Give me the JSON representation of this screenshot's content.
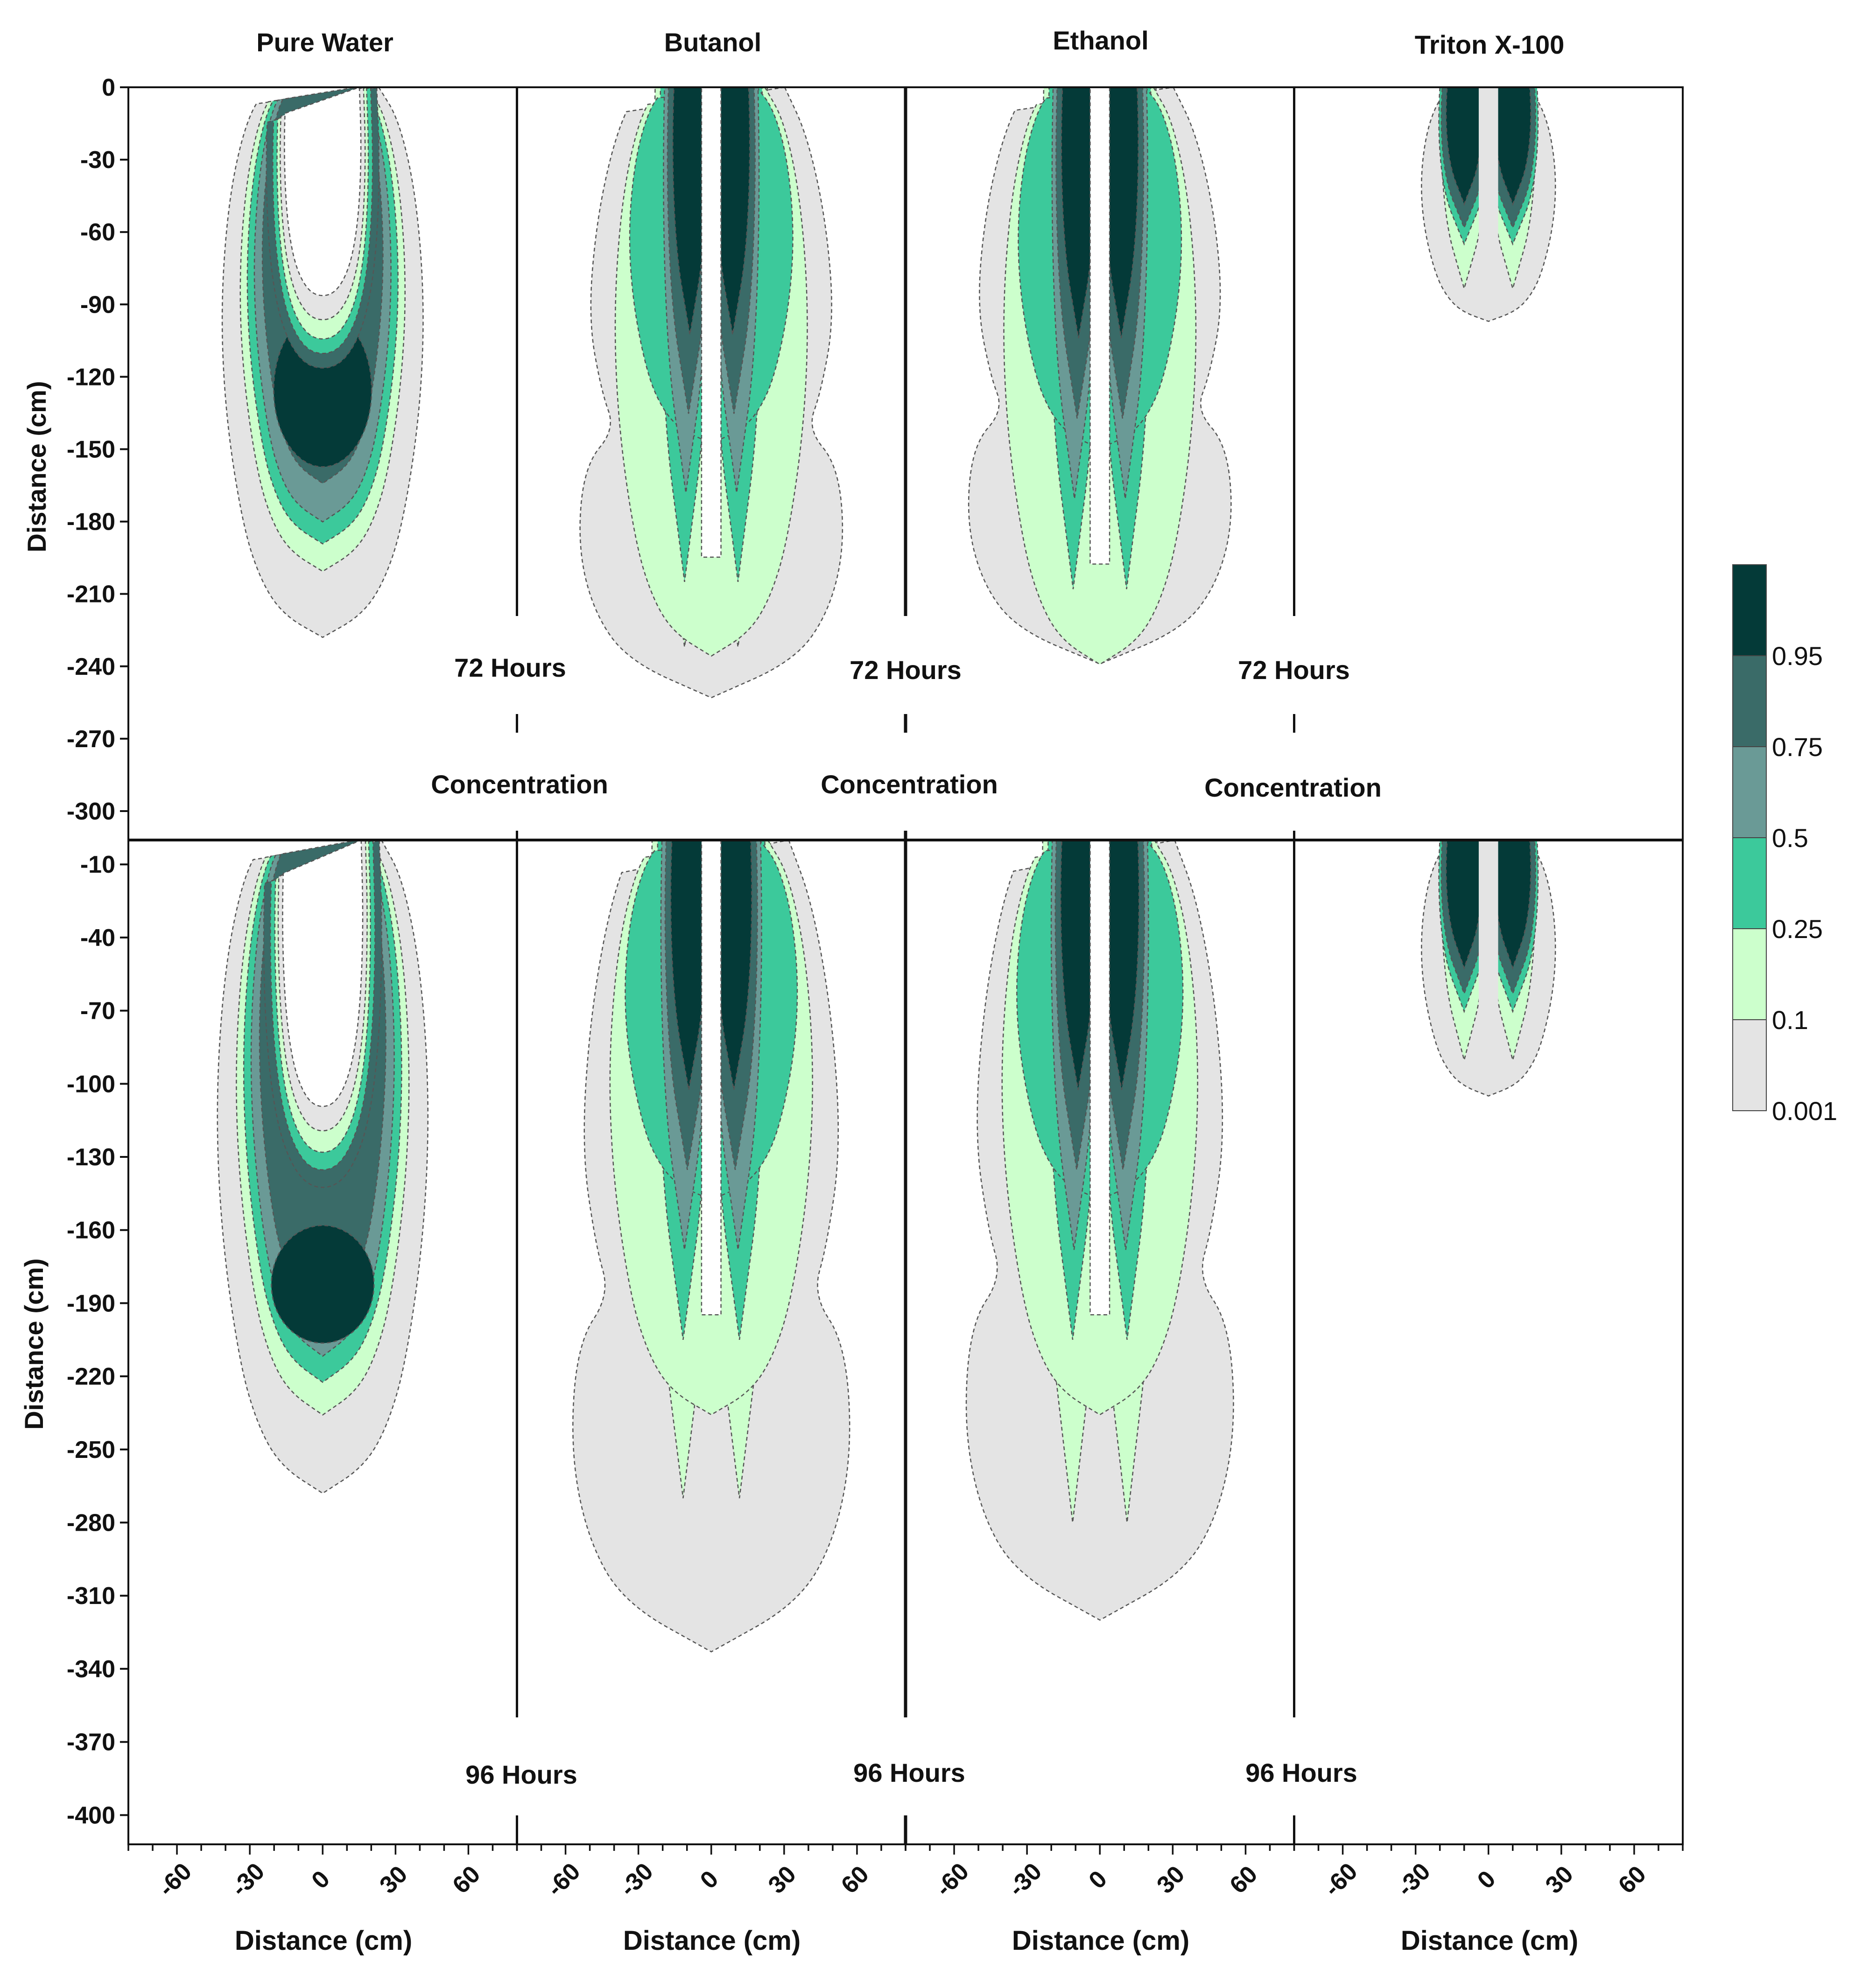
{
  "chart_data": {
    "type": "contour",
    "title": "Concentration",
    "description_text": "Filled concentration contours of infiltration plumes",
    "columns": [
      "Pure Water",
      "Butanol",
      "Ethanol",
      "Triton X-100"
    ],
    "rows": [
      {
        "time_label": "72 Hours",
        "ylabel": "Distance (cm)",
        "yticks": [
          0,
          -30,
          -60,
          -90,
          -120,
          -150,
          -180,
          -210,
          -240,
          -270,
          -300
        ],
        "ylim": [
          -312,
          0
        ]
      },
      {
        "time_label": "96 Hours",
        "ylabel": "Distance (cm)",
        "yticks": [
          -10,
          -40,
          -70,
          -100,
          -130,
          -160,
          -190,
          -220,
          -250,
          -280,
          -310,
          -340,
          -370,
          -400
        ],
        "ylim": [
          -412,
          0
        ]
      }
    ],
    "xlabel": "Distance (cm)",
    "xticks": [
      -60,
      -30,
      0,
      30,
      60
    ],
    "xlim": [
      -80,
      80
    ],
    "center_label": "Concentration",
    "colorbar": {
      "levels": [
        "0.001",
        "0.1",
        "0.25",
        "0.5",
        "0.75",
        "0.95"
      ],
      "colors": [
        "#e4e4e4",
        "#ccffcc",
        "#3cc99b",
        "#6a9a96",
        "#3a6b68",
        "#043a38"
      ]
    },
    "plume_extents": [
      {
        "fluid": "Pure Water",
        "time": "72 Hours",
        "max_depth_cm": 228,
        "half_width_cm": 42
      },
      {
        "fluid": "Butanol",
        "time": "72 Hours",
        "max_depth_cm": 253,
        "half_width_cm": 55
      },
      {
        "fluid": "Ethanol",
        "time": "72 Hours",
        "max_depth_cm": 239,
        "half_width_cm": 55
      },
      {
        "fluid": "Triton X-100",
        "time": "72 Hours",
        "max_depth_cm": 97,
        "half_width_cm": 28
      },
      {
        "fluid": "Pure Water",
        "time": "96 Hours",
        "max_depth_cm": 268,
        "half_width_cm": 44
      },
      {
        "fluid": "Butanol",
        "time": "96 Hours",
        "max_depth_cm": 333,
        "half_width_cm": 58
      },
      {
        "fluid": "Ethanol",
        "time": "96 Hours",
        "max_depth_cm": 320,
        "half_width_cm": 56
      },
      {
        "fluid": "Triton X-100",
        "time": "96 Hours",
        "max_depth_cm": 105,
        "half_width_cm": 26
      }
    ]
  }
}
